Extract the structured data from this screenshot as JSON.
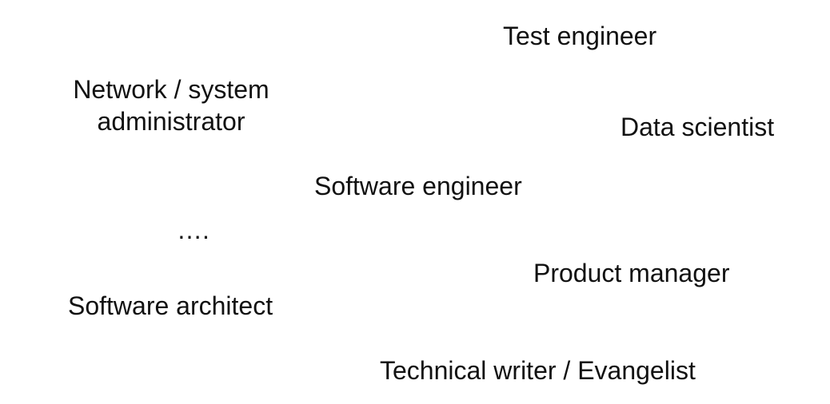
{
  "roles": {
    "test_engineer": "Test engineer",
    "network_admin_line1": "Network / system",
    "network_admin_line2": "administrator",
    "data_scientist": "Data scientist",
    "software_engineer": "Software engineer",
    "ellipsis": "….",
    "product_manager": "Product manager",
    "software_architect": "Software architect",
    "technical_writer": "Technical writer / Evangelist"
  }
}
